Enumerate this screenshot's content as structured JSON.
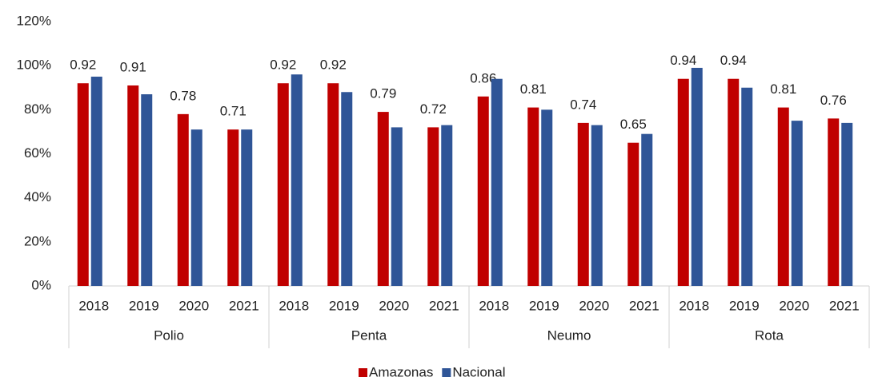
{
  "chart_data": {
    "type": "bar",
    "groups": [
      "Polio",
      "Penta",
      "Neumo",
      "Rota"
    ],
    "categories": [
      "2018",
      "2019",
      "2020",
      "2021",
      "2018",
      "2019",
      "2020",
      "2021",
      "2018",
      "2019",
      "2020",
      "2021",
      "2018",
      "2019",
      "2020",
      "2021"
    ],
    "series": [
      {
        "name": "Amazonas",
        "color": "#c00000",
        "values": [
          92,
          91,
          78,
          71,
          92,
          92,
          79,
          72,
          86,
          81,
          74,
          65,
          94,
          94,
          81,
          76
        ],
        "value_labels": [
          "0.92",
          "0.91",
          "0.78",
          "0.71",
          "0.92",
          "0.92",
          "0.79",
          "0.72",
          "0.86",
          "0.81",
          "0.74",
          "0.65",
          "0.94",
          "0.94",
          "0.81",
          "0.76"
        ]
      },
      {
        "name": "Nacional",
        "color": "#2f5597",
        "values": [
          95,
          87,
          71,
          71,
          96,
          88,
          72,
          73,
          94,
          80,
          73,
          69,
          99,
          90,
          75,
          74
        ]
      }
    ],
    "ylim": [
      0,
      120
    ],
    "yticks": [
      {
        "value": 0,
        "label": "0%"
      },
      {
        "value": 20,
        "label": "20%"
      },
      {
        "value": 40,
        "label": "40%"
      },
      {
        "value": 60,
        "label": "60%"
      },
      {
        "value": 80,
        "label": "80%"
      },
      {
        "value": 100,
        "label": "100%"
      },
      {
        "value": 120,
        "label": "120%"
      }
    ],
    "legend": "bottom"
  }
}
